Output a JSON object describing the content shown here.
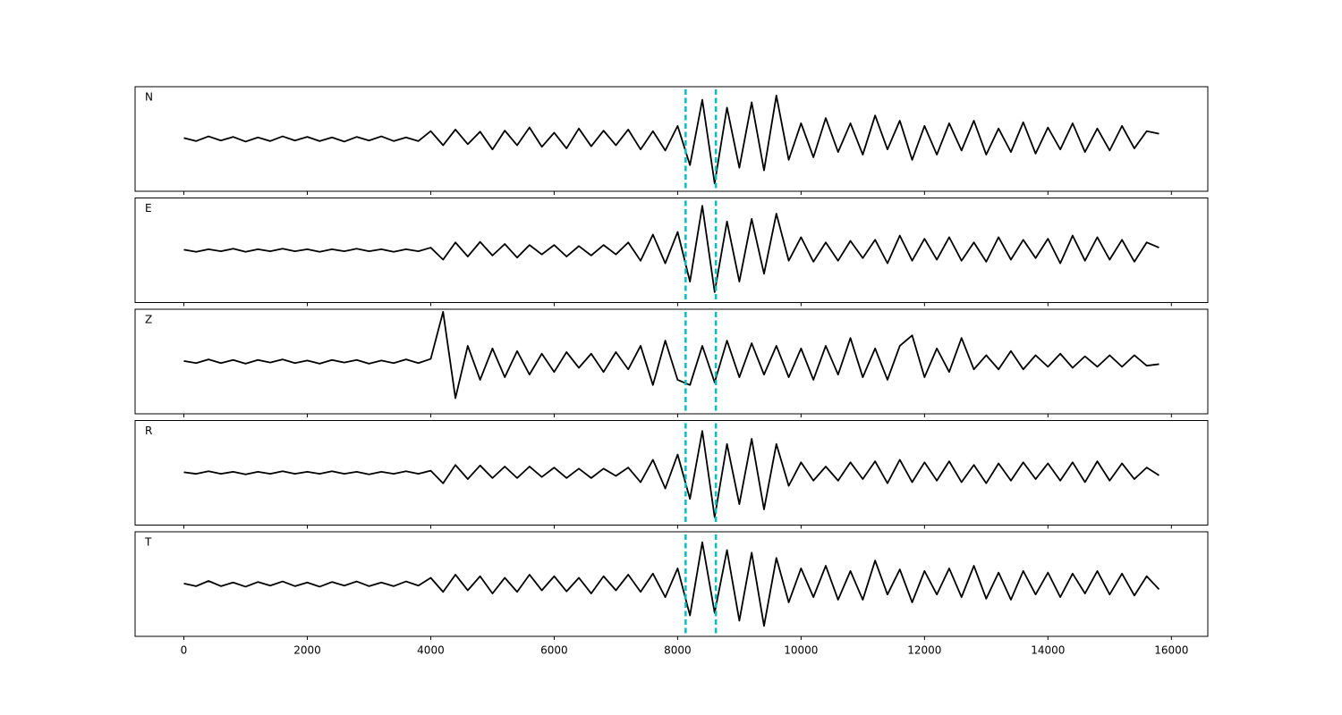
{
  "chart_data": {
    "type": "line",
    "x": [
      0,
      200,
      400,
      600,
      800,
      1000,
      1200,
      1400,
      1600,
      1800,
      2000,
      2200,
      2400,
      2600,
      2800,
      3000,
      3200,
      3400,
      3600,
      3800,
      4000,
      4200,
      4400,
      4600,
      4800,
      5000,
      5200,
      5400,
      5600,
      5800,
      6000,
      6200,
      6400,
      6600,
      6800,
      7000,
      7200,
      7400,
      7600,
      7800,
      8000,
      8200,
      8400,
      8600,
      8800,
      9000,
      9200,
      9400,
      9600,
      9800,
      10000,
      10200,
      10400,
      10600,
      10800,
      11000,
      11200,
      11400,
      11600,
      11800,
      12000,
      12200,
      12400,
      12600,
      12800,
      13000,
      13200,
      13400,
      13600,
      13800,
      14000,
      14200,
      14400,
      14600,
      14800,
      15000,
      15200,
      15400,
      15600,
      15800
    ],
    "series": [
      {
        "name": "N",
        "color": "#000000",
        "values": [
          0.02,
          -0.04,
          0.05,
          -0.03,
          0.04,
          -0.05,
          0.03,
          -0.04,
          0.05,
          -0.03,
          0.04,
          -0.04,
          0.03,
          -0.05,
          0.04,
          -0.03,
          0.05,
          -0.04,
          0.03,
          -0.04,
          0.15,
          -0.12,
          0.18,
          -0.1,
          0.14,
          -0.2,
          0.16,
          -0.12,
          0.22,
          -0.15,
          0.12,
          -0.18,
          0.2,
          -0.14,
          0.16,
          -0.12,
          0.18,
          -0.2,
          0.15,
          -0.22,
          0.25,
          -0.5,
          0.75,
          -0.85,
          0.6,
          -0.55,
          0.7,
          -0.6,
          0.83,
          -0.4,
          0.3,
          -0.35,
          0.4,
          -0.25,
          0.3,
          -0.3,
          0.45,
          -0.2,
          0.35,
          -0.4,
          0.25,
          -0.3,
          0.3,
          -0.22,
          0.35,
          -0.3,
          0.2,
          -0.25,
          0.32,
          -0.28,
          0.22,
          -0.2,
          0.3,
          -0.25,
          0.2,
          -0.22,
          0.25,
          -0.18,
          0.15,
          0.1
        ]
      },
      {
        "name": "E",
        "color": "#000000",
        "values": [
          0.01,
          -0.03,
          0.02,
          -0.02,
          0.03,
          -0.03,
          0.02,
          -0.02,
          0.03,
          -0.02,
          0.02,
          -0.03,
          0.02,
          -0.02,
          0.03,
          -0.02,
          0.02,
          -0.03,
          0.02,
          -0.02,
          0.05,
          -0.18,
          0.15,
          -0.12,
          0.16,
          -0.1,
          0.12,
          -0.14,
          0.1,
          -0.08,
          0.1,
          -0.12,
          0.08,
          -0.1,
          0.1,
          -0.08,
          0.15,
          -0.2,
          0.3,
          -0.25,
          0.35,
          -0.6,
          0.85,
          -0.8,
          0.55,
          -0.6,
          0.6,
          -0.45,
          0.7,
          -0.2,
          0.25,
          -0.22,
          0.15,
          -0.2,
          0.18,
          -0.15,
          0.2,
          -0.25,
          0.28,
          -0.2,
          0.22,
          -0.18,
          0.25,
          -0.2,
          0.15,
          -0.22,
          0.25,
          -0.18,
          0.2,
          -0.15,
          0.22,
          -0.25,
          0.28,
          -0.2,
          0.25,
          -0.18,
          0.2,
          -0.22,
          0.15,
          0.05
        ]
      },
      {
        "name": "Z",
        "color": "#000000",
        "values": [
          0.01,
          -0.03,
          0.04,
          -0.03,
          0.03,
          -0.04,
          0.03,
          -0.02,
          0.04,
          -0.03,
          0.02,
          -0.04,
          0.03,
          -0.02,
          0.03,
          -0.04,
          0.02,
          -0.03,
          0.04,
          -0.03,
          0.05,
          0.95,
          -0.7,
          0.3,
          -0.35,
          0.25,
          -0.3,
          0.2,
          -0.25,
          0.15,
          -0.2,
          0.18,
          -0.12,
          0.15,
          -0.2,
          0.18,
          -0.15,
          0.3,
          -0.45,
          0.4,
          -0.35,
          -0.45,
          0.3,
          -0.4,
          0.4,
          -0.3,
          0.35,
          -0.25,
          0.3,
          -0.3,
          0.25,
          -0.35,
          0.3,
          -0.25,
          0.45,
          -0.3,
          0.25,
          -0.35,
          0.3,
          0.5,
          -0.3,
          0.25,
          -0.2,
          0.45,
          -0.15,
          0.12,
          -0.15,
          0.2,
          -0.15,
          0.12,
          -0.1,
          0.15,
          -0.12,
          0.1,
          -0.1,
          0.12,
          -0.1,
          0.12,
          -0.08,
          -0.05
        ]
      },
      {
        "name": "R",
        "color": "#000000",
        "values": [
          0.01,
          -0.02,
          0.03,
          -0.02,
          0.02,
          -0.03,
          0.02,
          -0.02,
          0.03,
          -0.02,
          0.02,
          -0.02,
          0.03,
          -0.02,
          0.02,
          -0.03,
          0.02,
          -0.02,
          0.03,
          -0.02,
          0.04,
          -0.2,
          0.15,
          -0.12,
          0.14,
          -0.1,
          0.12,
          -0.1,
          0.12,
          -0.08,
          0.1,
          -0.1,
          0.08,
          -0.1,
          0.08,
          -0.06,
          0.1,
          -0.18,
          0.25,
          -0.3,
          0.35,
          -0.5,
          0.8,
          -0.85,
          0.55,
          -0.6,
          0.65,
          -0.7,
          0.55,
          -0.25,
          0.2,
          -0.15,
          0.12,
          -0.15,
          0.2,
          -0.12,
          0.22,
          -0.2,
          0.25,
          -0.18,
          0.2,
          -0.15,
          0.22,
          -0.18,
          0.15,
          -0.2,
          0.18,
          -0.15,
          0.2,
          -0.12,
          0.18,
          -0.15,
          0.2,
          -0.18,
          0.22,
          -0.15,
          0.18,
          -0.12,
          0.1,
          -0.05
        ]
      },
      {
        "name": "T",
        "color": "#000000",
        "values": [
          0.01,
          -0.04,
          0.06,
          -0.04,
          0.03,
          -0.05,
          0.04,
          -0.03,
          0.05,
          -0.04,
          0.03,
          -0.05,
          0.04,
          -0.03,
          0.05,
          -0.04,
          0.03,
          -0.04,
          0.05,
          -0.03,
          0.12,
          -0.15,
          0.18,
          -0.12,
          0.15,
          -0.18,
          0.12,
          -0.15,
          0.18,
          -0.12,
          0.15,
          -0.14,
          0.12,
          -0.18,
          0.15,
          -0.12,
          0.18,
          -0.15,
          0.2,
          -0.25,
          0.3,
          -0.6,
          0.8,
          -0.55,
          0.65,
          -0.7,
          0.6,
          -0.8,
          0.5,
          -0.35,
          0.3,
          -0.25,
          0.35,
          -0.3,
          0.25,
          -0.3,
          0.45,
          -0.2,
          0.28,
          -0.35,
          0.25,
          -0.2,
          0.3,
          -0.25,
          0.35,
          -0.28,
          0.22,
          -0.3,
          0.25,
          -0.2,
          0.22,
          -0.25,
          0.2,
          -0.18,
          0.25,
          -0.2,
          0.2,
          -0.22,
          0.15,
          -0.1
        ]
      }
    ],
    "ylim": [
      -1,
      1
    ],
    "xlim": [
      -790,
      16590
    ],
    "xticks": [
      0,
      2000,
      4000,
      6000,
      8000,
      10000,
      12000,
      14000,
      16000
    ],
    "vlines": {
      "color": "#00bfbf",
      "x": [
        8130,
        8620
      ]
    }
  }
}
